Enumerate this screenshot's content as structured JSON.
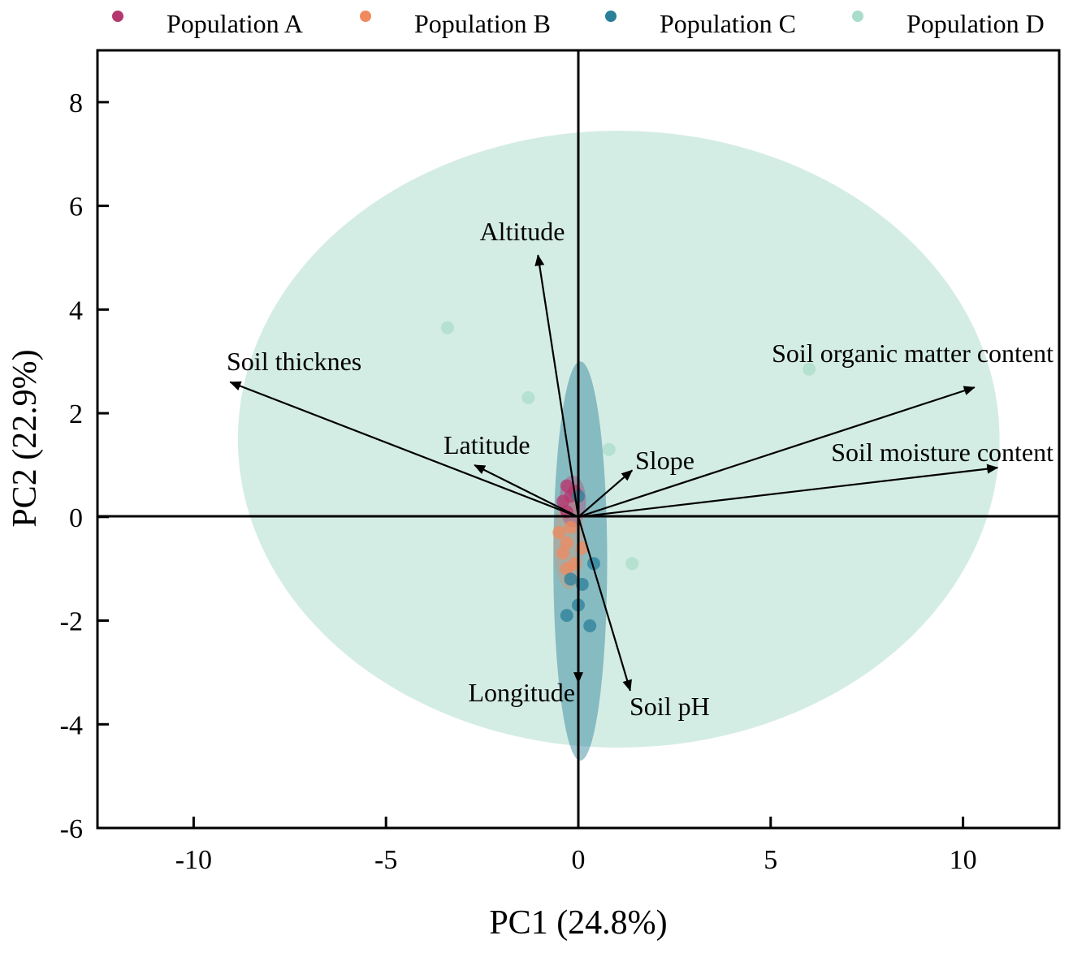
{
  "chart_data": {
    "type": "scatter",
    "subtype": "pca-biplot",
    "xlabel": "PC1 (24.8%)",
    "ylabel": "PC2 (22.9%)",
    "xlim": [
      -12.5,
      12.5
    ],
    "ylim": [
      -6,
      9
    ],
    "x_ticks": [
      -10,
      -5,
      0,
      5,
      10
    ],
    "y_ticks": [
      8,
      6,
      4,
      2,
      0,
      -2,
      -4,
      -6
    ],
    "x_tick_labels": [
      "-10",
      "-5",
      "0",
      "5",
      "10"
    ],
    "y_tick_labels": [
      "8",
      "6",
      "4",
      "2",
      "0",
      "-2",
      "-4",
      "-6"
    ],
    "legend_position": "top",
    "series": [
      {
        "name": "Population A",
        "color": "#b5376f",
        "points": [
          [
            -0.3,
            0.6
          ],
          [
            -0.2,
            0.4
          ],
          [
            -0.4,
            0.3
          ],
          [
            -0.1,
            0.5
          ],
          [
            -0.3,
            0.1
          ]
        ],
        "ellipse": {
          "center": [
            -0.15,
            0.3
          ],
          "rx": 0.35,
          "ry": 0.5,
          "angle": 0
        }
      },
      {
        "name": "Population B",
        "color": "#f08a5d",
        "points": [
          [
            -0.5,
            -0.3
          ],
          [
            -0.3,
            -0.5
          ],
          [
            -0.2,
            -0.2
          ],
          [
            -0.4,
            -0.7
          ],
          [
            -0.1,
            -0.9
          ],
          [
            -0.3,
            -1.0
          ],
          [
            0.1,
            -0.6
          ]
        ],
        "ellipse": {
          "center": [
            -0.25,
            -0.5
          ],
          "rx": 0.4,
          "ry": 0.9,
          "angle": 0
        }
      },
      {
        "name": "Population C",
        "color": "#2a7f99",
        "points": [
          [
            0.0,
            -1.7
          ],
          [
            -0.3,
            -1.9
          ],
          [
            0.3,
            -2.1
          ],
          [
            0.4,
            -0.9
          ],
          [
            0.1,
            -1.3
          ],
          [
            -0.2,
            -1.2
          ],
          [
            0.0,
            0.4
          ]
        ],
        "ellipse": {
          "center": [
            0.05,
            -0.85
          ],
          "rx": 0.7,
          "ry": 3.85,
          "angle": 0
        }
      },
      {
        "name": "Population D",
        "color": "#a9dcc9",
        "points": [
          [
            -3.4,
            3.65
          ],
          [
            -1.3,
            2.3
          ],
          [
            0.8,
            1.3
          ],
          [
            1.4,
            -0.9
          ],
          [
            6.0,
            2.85
          ]
        ],
        "ellipse": {
          "center": [
            1.05,
            1.5
          ],
          "rx": 9.9,
          "ry": 5.95,
          "angle": 0
        }
      }
    ],
    "loadings": [
      {
        "label": "Altitude",
        "x": -1.05,
        "y": 5.05
      },
      {
        "label": "Soil thicknes",
        "x": -9.05,
        "y": 2.6
      },
      {
        "label": "Latitude",
        "x": -2.7,
        "y": 1.0
      },
      {
        "label": "Slope",
        "x": 1.4,
        "y": 0.9
      },
      {
        "label": "Soil organic matter content",
        "x": 10.3,
        "y": 2.5
      },
      {
        "label": "Soil moisture content",
        "x": 10.9,
        "y": 0.95
      },
      {
        "label": "Soil pH",
        "x": 1.35,
        "y": -3.35
      },
      {
        "label": "Longitude",
        "x": 0.0,
        "y": -3.2
      }
    ]
  }
}
